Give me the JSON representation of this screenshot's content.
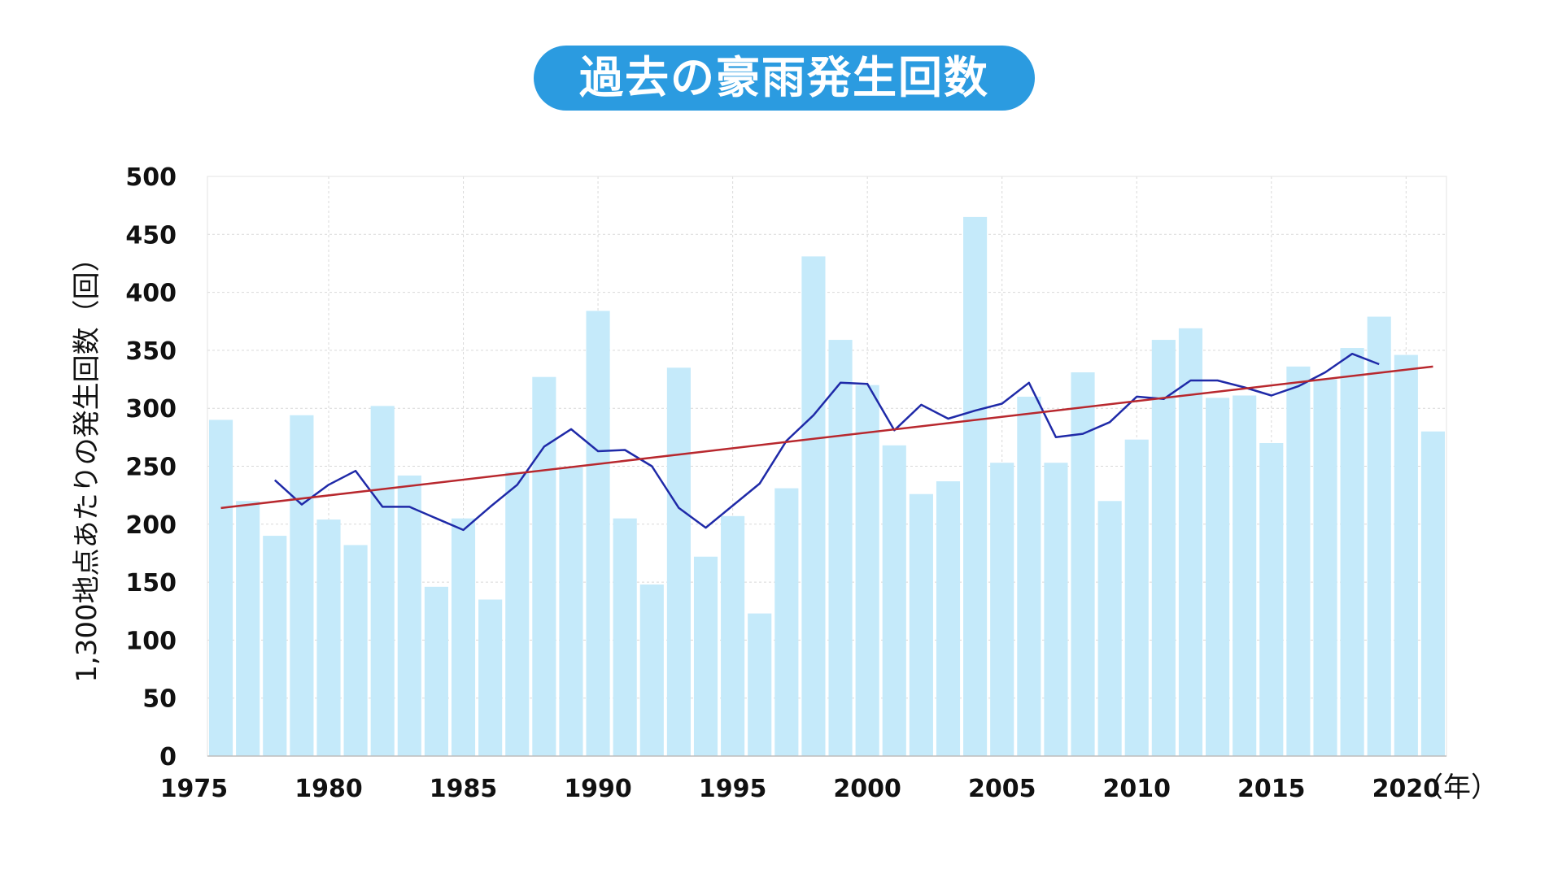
{
  "title": "過去の豪雨発生回数",
  "colors": {
    "title_bg": "#2b9be0",
    "bar": "#c5eafa",
    "moving_average": "#1f2aa8",
    "trend": "#b8282e",
    "grid": "#d9d9d9"
  },
  "chart_data": {
    "type": "bar",
    "title": "過去の豪雨発生回数",
    "ylabel": "1,300地点あたりの発生回数（回）",
    "xlabel": "（年）",
    "ylim": [
      0,
      500
    ],
    "y_ticks": [
      "0",
      "50",
      "100",
      "150",
      "200",
      "250",
      "300",
      "350",
      "400",
      "450",
      "500"
    ],
    "x_ticks": [
      "1975",
      "1980",
      "1985",
      "1990",
      "1995",
      "2000",
      "2005",
      "2010",
      "2015",
      "2020"
    ],
    "grid": true,
    "categories": [
      1976,
      1977,
      1978,
      1979,
      1980,
      1981,
      1982,
      1983,
      1984,
      1985,
      1986,
      1987,
      1988,
      1989,
      1990,
      1991,
      1992,
      1993,
      1994,
      1995,
      1996,
      1997,
      1998,
      1999,
      2000,
      2001,
      2002,
      2003,
      2004,
      2005,
      2006,
      2007,
      2008,
      2009,
      2010,
      2011,
      2012,
      2013,
      2014,
      2015,
      2016,
      2017,
      2018,
      2019,
      2020,
      2021
    ],
    "series": [
      {
        "type": "bar",
        "values": [
          290,
          220,
          190,
          294,
          204,
          182,
          302,
          242,
          146,
          205,
          135,
          245,
          327,
          249,
          384,
          205,
          148,
          335,
          172,
          207,
          123,
          231,
          431,
          359,
          320,
          268,
          226,
          237,
          465,
          253,
          310,
          253,
          331,
          220,
          273,
          359,
          369,
          309,
          311,
          270,
          336,
          325,
          352,
          379,
          346,
          280
        ]
      },
      {
        "type": "line",
        "x": [
          1978,
          1979,
          1980,
          1981,
          1982,
          1983,
          1984,
          1985,
          1986,
          1987,
          1988,
          1989,
          1990,
          1991,
          1992,
          1993,
          1994,
          1995,
          1996,
          1997,
          1998,
          1999,
          2000,
          2001,
          2002,
          2003,
          2004,
          2005,
          2006,
          2007,
          2008,
          2009,
          2010,
          2011,
          2012,
          2013,
          2014,
          2015,
          2016,
          2017,
          2018,
          2019
        ],
        "values": [
          238,
          217,
          234,
          246,
          215,
          215,
          205,
          195,
          215,
          234,
          267,
          282,
          263,
          264,
          250,
          214,
          197,
          216,
          235,
          272,
          294,
          322,
          321,
          281,
          303,
          291,
          298,
          304,
          322,
          275,
          278,
          288,
          310,
          308,
          324,
          324,
          318,
          311,
          319,
          331,
          347,
          338
        ]
      },
      {
        "type": "line",
        "x": [
          1976,
          2021
        ],
        "values": [
          214,
          336
        ]
      }
    ]
  }
}
